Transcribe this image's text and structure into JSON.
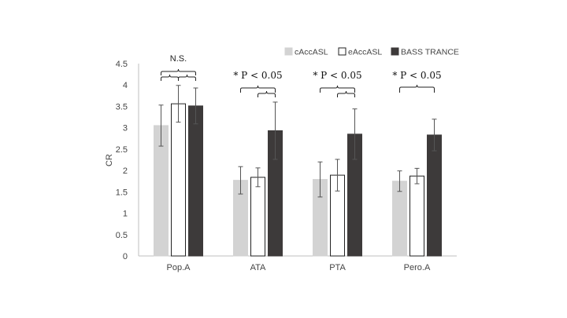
{
  "chart_data": {
    "type": "bar",
    "title": "",
    "xlabel": "",
    "ylabel": "CR",
    "ylim": [
      0,
      4.5
    ],
    "ytick_step": 0.5,
    "yticks": [
      "0",
      "0.5",
      "1",
      "1.5",
      "2",
      "2.5",
      "3",
      "3.5",
      "4",
      "4.5"
    ],
    "categories": [
      "Pop.A",
      "ATA",
      "PTA",
      "Pero.A"
    ],
    "series": [
      {
        "name": "cAccASL",
        "values": [
          3.05,
          1.77,
          1.79,
          1.75
        ],
        "errors": [
          0.48,
          0.32,
          0.41,
          0.24
        ],
        "color": "#d3d3d3",
        "stroke": "#d3d3d3"
      },
      {
        "name": "eAccASL",
        "values": [
          3.56,
          1.84,
          1.89,
          1.87
        ],
        "errors": [
          0.43,
          0.22,
          0.37,
          0.18
        ],
        "color": "#ffffff",
        "stroke": "#222222"
      },
      {
        "name": "BASS TRANCE",
        "values": [
          3.51,
          2.93,
          2.85,
          2.83
        ],
        "errors": [
          0.42,
          0.67,
          0.59,
          0.37
        ],
        "color": "#3d3a3a",
        "stroke": "#3d3a3a"
      }
    ],
    "legend": {
      "position": "top-right"
    },
    "grid": false,
    "annotations": [
      {
        "category": "Pop.A",
        "label": "N.S.",
        "type": "ns"
      },
      {
        "category": "ATA",
        "label": "* P < 0.05",
        "type": "sig"
      },
      {
        "category": "PTA",
        "label": "* P < 0.05",
        "type": "sig"
      },
      {
        "category": "Pero.A",
        "label": "* P < 0.05",
        "type": "sig"
      }
    ]
  }
}
